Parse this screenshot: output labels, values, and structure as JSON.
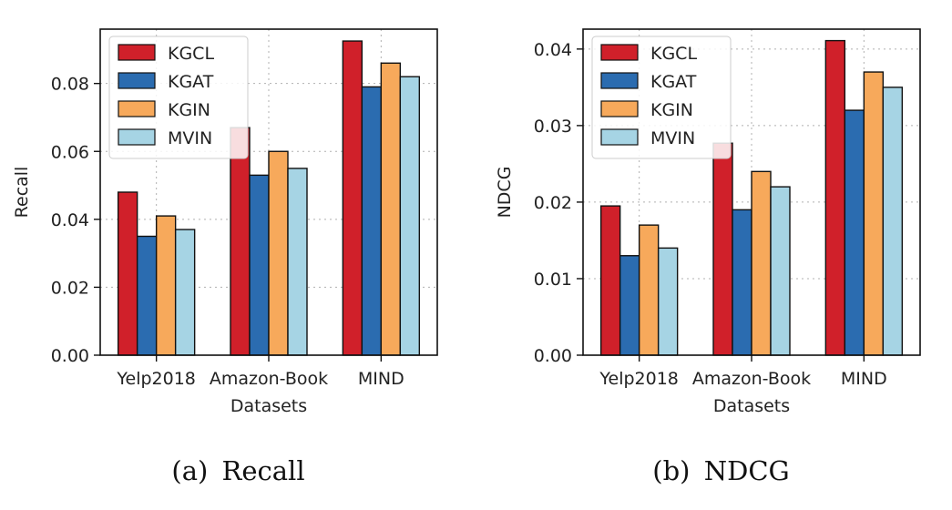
{
  "colors": {
    "KGCL": "#d0202a",
    "KGAT": "#2b6cb0",
    "KGIN": "#f7a95b",
    "MVIN": "#a6d4e4",
    "bar_edge": "#111111",
    "grid": "#b0b0b0"
  },
  "chart_data": [
    {
      "type": "bar",
      "panel_label": "(a)",
      "caption": "Recall",
      "title": "",
      "xlabel": "Datasets",
      "ylabel": "Recall",
      "categories": [
        "Yelp2018",
        "Amazon-Book",
        "MIND"
      ],
      "ylim": [
        0,
        0.096
      ],
      "yticks": [
        "0.00",
        "0.02",
        "0.04",
        "0.06",
        "0.08"
      ],
      "ytick_values": [
        0,
        0.02,
        0.04,
        0.06,
        0.08
      ],
      "legend_position": "top-left",
      "grid": "dotted",
      "series": [
        {
          "name": "KGCL",
          "values": [
            0.048,
            0.067,
            0.0925
          ]
        },
        {
          "name": "KGAT",
          "values": [
            0.035,
            0.053,
            0.079
          ]
        },
        {
          "name": "KGIN",
          "values": [
            0.041,
            0.06,
            0.086
          ]
        },
        {
          "name": "MVIN",
          "values": [
            0.037,
            0.055,
            0.082
          ]
        }
      ]
    },
    {
      "type": "bar",
      "panel_label": "(b)",
      "caption": "NDCG",
      "title": "",
      "xlabel": "Datasets",
      "ylabel": "NDCG",
      "categories": [
        "Yelp2018",
        "Amazon-Book",
        "MIND"
      ],
      "ylim": [
        0,
        0.0426
      ],
      "yticks": [
        "0.00",
        "0.01",
        "0.02",
        "0.03",
        "0.04"
      ],
      "ytick_values": [
        0,
        0.01,
        0.02,
        0.03,
        0.04
      ],
      "legend_position": "top-left",
      "grid": "dotted",
      "series": [
        {
          "name": "KGCL",
          "values": [
            0.0195,
            0.0277,
            0.0411
          ]
        },
        {
          "name": "KGAT",
          "values": [
            0.013,
            0.019,
            0.032
          ]
        },
        {
          "name": "KGIN",
          "values": [
            0.017,
            0.024,
            0.037
          ]
        },
        {
          "name": "MVIN",
          "values": [
            0.014,
            0.022,
            0.035
          ]
        }
      ]
    }
  ]
}
